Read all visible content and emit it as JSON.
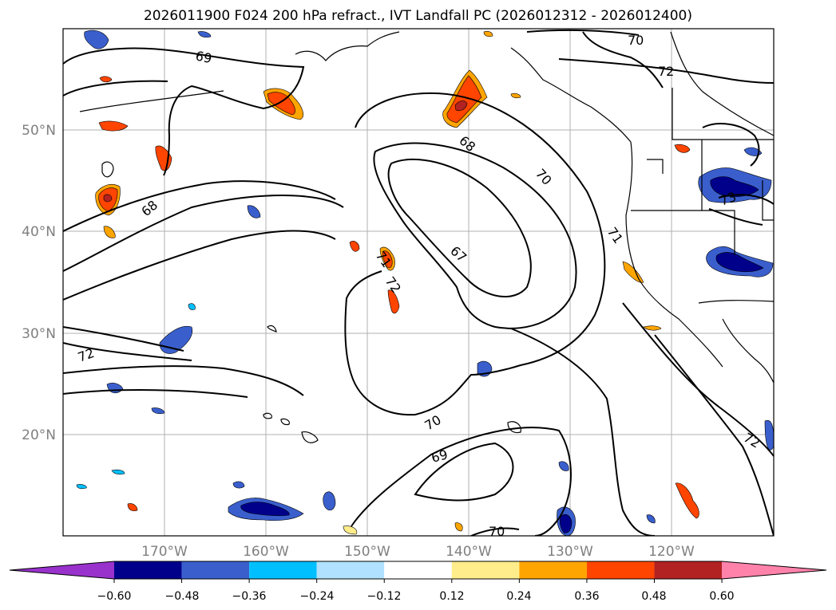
{
  "title": "2026011900 F024 200 hPa refract., IVT Landfall PC (2026012312 - 2026012400)",
  "axes": {
    "lat_labels": [
      "50°N",
      "40°N",
      "30°N",
      "20°N"
    ],
    "lon_labels": [
      "170°W",
      "160°W",
      "150°W",
      "140°W",
      "130°W",
      "120°W"
    ]
  },
  "contour_labels": [
    "70",
    "72",
    "69",
    "68",
    "70",
    "68",
    "71",
    "67",
    "71",
    "72",
    "72",
    "73",
    "72",
    "70",
    "69",
    "70"
  ],
  "colorbar": {
    "tick_labels": [
      "−0.60",
      "−0.48",
      "−0.36",
      "−0.24",
      "−0.12",
      "0.12",
      "0.24",
      "0.36",
      "0.48",
      "0.60"
    ],
    "colors": [
      "#9932CC",
      "#00008B",
      "#3A5FCD",
      "#00BFFF",
      "#B0E2FF",
      "#FFFFFF",
      "#FFEC8B",
      "#FFA500",
      "#FF4500",
      "#B22222",
      "#FF82AB"
    ]
  }
}
